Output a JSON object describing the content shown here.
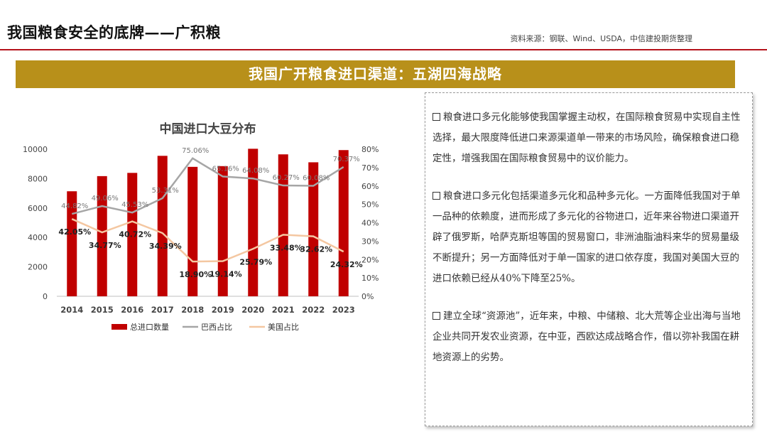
{
  "header": {
    "title": "我国粮食安全的底牌——广积粮",
    "source": "资料来源：钢联、Wind、USDA，中信建投期货整理"
  },
  "banner": {
    "text": "我国广开粮食进口渠道：五湖四海战略"
  },
  "chart_data": {
    "type": "bar",
    "title": "中国进口大豆分布",
    "categories": [
      "2014",
      "2015",
      "2016",
      "2017",
      "2018",
      "2019",
      "2020",
      "2021",
      "2022",
      "2023"
    ],
    "ylim": [
      0,
      10000
    ],
    "y2lim": [
      0,
      0.8
    ],
    "yticks": [
      "0",
      "2000",
      "4000",
      "6000",
      "8000",
      "10000"
    ],
    "y2ticks": [
      "0%",
      "10%",
      "20%",
      "30%",
      "40%",
      "50%",
      "60%",
      "70%",
      "80%"
    ],
    "series": [
      {
        "name": "总进口数量",
        "kind": "bar",
        "axis": "left",
        "color": "#c00000",
        "values": [
          7140,
          8170,
          8390,
          9550,
          8800,
          8850,
          10030,
          9650,
          9110,
          9940
        ]
      },
      {
        "name": "巴西占比",
        "kind": "line",
        "axis": "right",
        "color": "#a6a6a6",
        "values": [
          0.4482,
          0.4906,
          0.4553,
          0.5331,
          0.7506,
          0.6516,
          0.6408,
          0.6027,
          0.6008,
          0.7037
        ],
        "labels": [
          "44.82%",
          "49.06%",
          "45.53%",
          "53.31%",
          "75.06%",
          "65.16%",
          "64.08%",
          "60.27%",
          "60.08%",
          "70.37%"
        ]
      },
      {
        "name": "美国占比",
        "kind": "line",
        "axis": "right",
        "color": "#f4c7a1",
        "values": [
          0.4205,
          0.3477,
          0.4072,
          0.3439,
          0.189,
          0.1914,
          0.2579,
          0.3348,
          0.3262,
          0.2432
        ],
        "labels": [
          "42.05%",
          "34.77%",
          "40.72%",
          "34.39%",
          "18.90%",
          "19.14%",
          "25.79%",
          "33.48%",
          "32.62%",
          "24.32%"
        ]
      }
    ],
    "legend": "bottom"
  },
  "panel": {
    "paragraphs": [
      "粮食进口多元化能够使我国掌握主动权，在国际粮食贸易中实现自主性选择，最大限度降低进口来源渠道单一带来的市场风险，确保粮食进口稳定性，增强我国在国际粮食贸易中的议价能力。",
      "粮食进口多元化包括渠道多元化和品种多元化。一方面降低我国对于单一品种的依赖度，进而形成了多元化的谷物进口，近年来谷物进口渠道开辟了俄罗斯，哈萨克斯坦等国的贸易窗口，非洲油脂油料来华的贸易量级不断提升；另一方面降低对于单一国家的进口依存度，我国对美国大豆的进口依赖已经从40%下降至25%。",
      "建立全球“资源池”，近年来，中粮、中储粮、北大荒等企业出海与当地企业共同开发农业资源，在中亚，西欧达成战略合作，借以弥补我国在耕地资源上的劣势。"
    ]
  }
}
